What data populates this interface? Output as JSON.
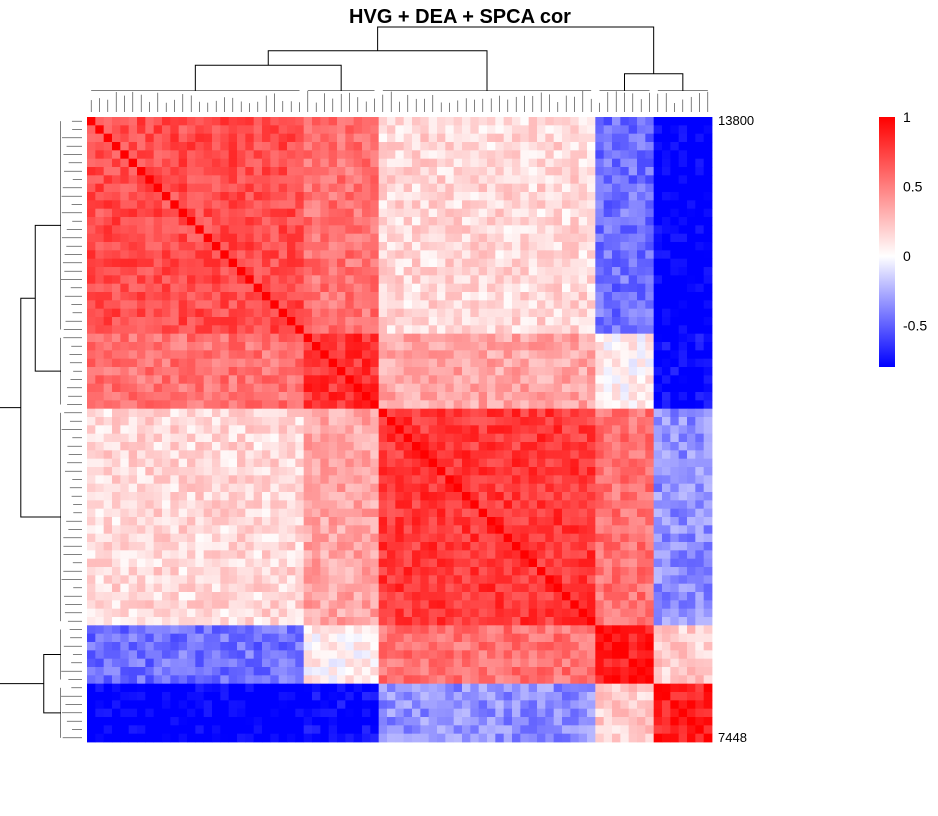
{
  "chart_data": {
    "type": "heatmap",
    "title": "HVG + DEA + SPCA cor",
    "matrix": "symmetric correlation matrix, hierarchically clustered on rows and columns (dendrograms on left and top)",
    "value_range": [
      -0.8,
      1
    ],
    "clusters": [
      {
        "id": "A",
        "share": 0.345
      },
      {
        "id": "B",
        "share": 0.125
      },
      {
        "id": "C",
        "share": 0.35
      },
      {
        "id": "D",
        "share": 0.08
      },
      {
        "id": "E",
        "share": 0.1
      }
    ],
    "block_correlations": [
      [
        0.7,
        0.55,
        0.15,
        -0.45,
        -0.85
      ],
      [
        0.55,
        0.8,
        0.35,
        0.05,
        -0.8
      ],
      [
        0.15,
        0.35,
        0.78,
        0.55,
        -0.35
      ],
      [
        -0.45,
        0.05,
        0.55,
        0.9,
        0.2
      ],
      [
        -0.85,
        -0.8,
        -0.35,
        0.2,
        0.88
      ]
    ],
    "diagonal": 1,
    "row_labels_visible": [
      "13800",
      "7448"
    ],
    "legend": {
      "position": "top-right",
      "ticks": [
        1,
        0.5,
        0,
        -0.5
      ],
      "tick_labels": [
        "1",
        "0.5",
        "0",
        "-0.5"
      ],
      "colors": {
        "high": "#ff0000",
        "mid": "#ffffff",
        "low": "#0000ff"
      }
    }
  }
}
